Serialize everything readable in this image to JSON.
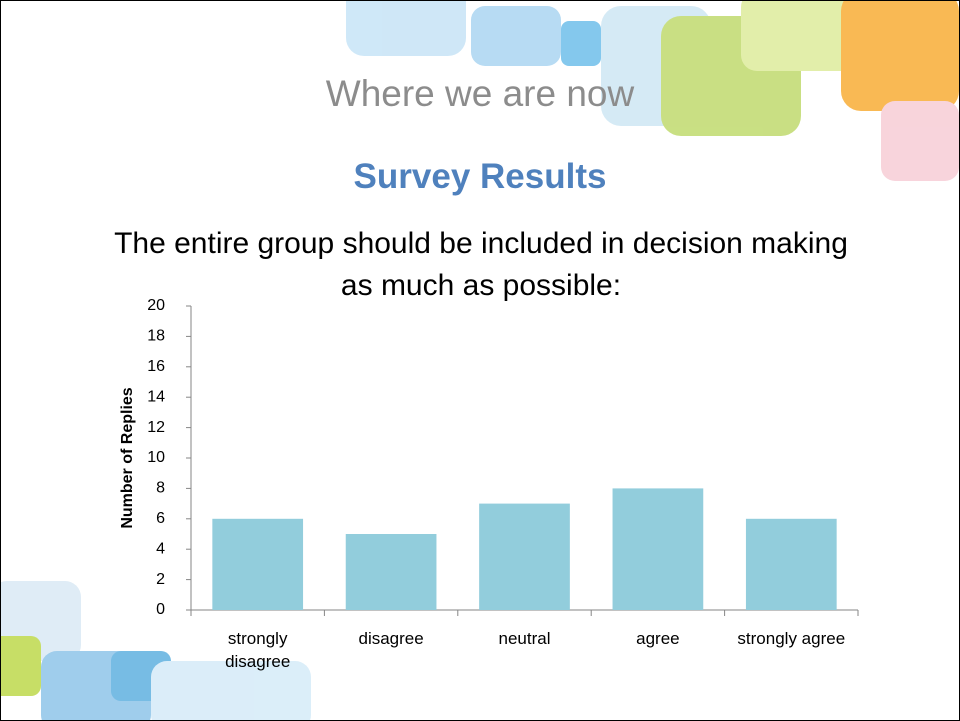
{
  "heading": "Where we are now",
  "subheading": "Survey Results",
  "chart_data": {
    "type": "bar",
    "title": "The entire group should be included in decision making as much as possible:",
    "y_label": "Number of Replies",
    "categories": [
      "strongly disagree",
      "disagree",
      "neutral",
      "agree",
      "strongly agree"
    ],
    "values": [
      6,
      5,
      7,
      8,
      6
    ],
    "color": "#92cddc",
    "ylim": [
      0,
      20
    ],
    "yticks": [
      0,
      2,
      4,
      6,
      8,
      10,
      12,
      14,
      16,
      18,
      20
    ],
    "grid": false
  }
}
